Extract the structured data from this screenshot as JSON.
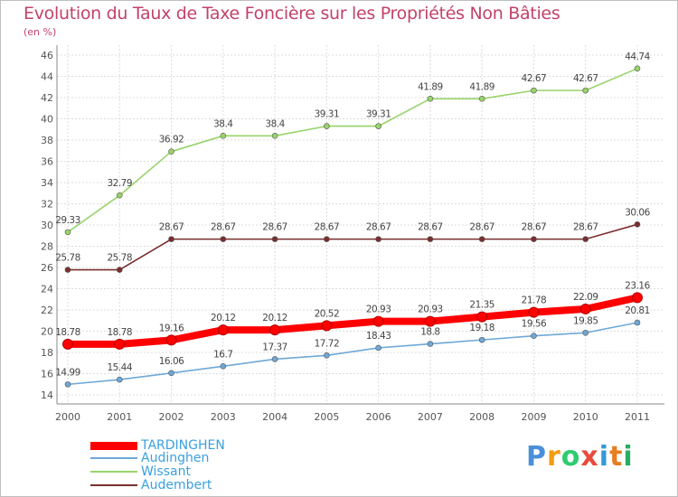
{
  "header": {
    "title": "Evolution du Taux de Taxe Foncière sur les Propriétés Non Bâties",
    "unit": "(en %)"
  },
  "chart_data": {
    "type": "line",
    "title": "Evolution du Taux de Taxe Foncière sur les Propriétés Non Bâties",
    "ylabel": "(en %)",
    "xlabel": "",
    "x": [
      "2000",
      "2001",
      "2002",
      "2003",
      "2004",
      "2005",
      "2006",
      "2007",
      "2008",
      "2009",
      "2010",
      "2011"
    ],
    "ylim": [
      14,
      46
    ],
    "yticks": [
      14,
      16,
      18,
      20,
      22,
      24,
      26,
      28,
      30,
      32,
      34,
      36,
      38,
      40,
      42,
      44,
      46
    ],
    "grid": true,
    "legend_position": "bottom-left",
    "series": [
      {
        "name": "TARDINGHEN",
        "color": "#ff0000",
        "values": [
          18.78,
          18.78,
          19.16,
          20.12,
          20.12,
          20.52,
          20.93,
          20.93,
          21.35,
          21.78,
          22.09,
          23.16
        ],
        "labels": [
          "18.78",
          "18.78",
          "19.16",
          "20.12",
          "20.12",
          "20.52",
          "20.93",
          "20.93",
          "21.35",
          "21.78",
          "22.09",
          "23.16"
        ]
      },
      {
        "name": "Audinghen",
        "color": "#6fa8d6",
        "values": [
          14.99,
          15.44,
          16.06,
          16.7,
          17.37,
          17.72,
          18.43,
          18.8,
          19.18,
          19.56,
          19.85,
          20.81
        ],
        "labels": [
          "14.99",
          "15.44",
          "16.06",
          "16.7",
          "17.37",
          "17.72",
          "18.43",
          "18.8",
          "19.18",
          "19.56",
          "19.85",
          "20.81"
        ]
      },
      {
        "name": "Wissant",
        "color": "#99d36b",
        "values": [
          29.33,
          32.79,
          36.92,
          38.4,
          38.4,
          39.31,
          39.31,
          41.89,
          41.89,
          42.67,
          42.67,
          44.74
        ],
        "labels": [
          "29.33",
          "32.79",
          "36.92",
          "38.4",
          "38.4",
          "39.31",
          "39.31",
          "41.89",
          "41.89",
          "42.67",
          "42.67",
          "44.74"
        ]
      },
      {
        "name": "Audembert",
        "color": "#7a2e2e",
        "values": [
          25.78,
          25.78,
          28.67,
          28.67,
          28.67,
          28.67,
          28.67,
          28.67,
          28.67,
          28.67,
          28.67,
          30.06
        ],
        "labels": [
          "25.78",
          "25.78",
          "28.67",
          "28.67",
          "28.67",
          "28.67",
          "28.67",
          "28.67",
          "28.67",
          "28.67",
          "28.67",
          "30.06"
        ]
      }
    ]
  },
  "legend": {
    "items": [
      {
        "label": "TARDINGHEN",
        "color": "#ff0000"
      },
      {
        "label": "Audinghen",
        "color": "#6fa8d6"
      },
      {
        "label": "Wissant",
        "color": "#99d36b"
      },
      {
        "label": "Audembert",
        "color": "#7a2e2e"
      }
    ]
  },
  "logo": {
    "letters": [
      "P",
      "r",
      "o",
      "x",
      "i",
      "t",
      "i"
    ],
    "colors": [
      "#4a90d9",
      "#f39c12",
      "#2ecc71",
      "#e74c3c",
      "#3498db",
      "#e67e22",
      "#27ae60"
    ]
  }
}
